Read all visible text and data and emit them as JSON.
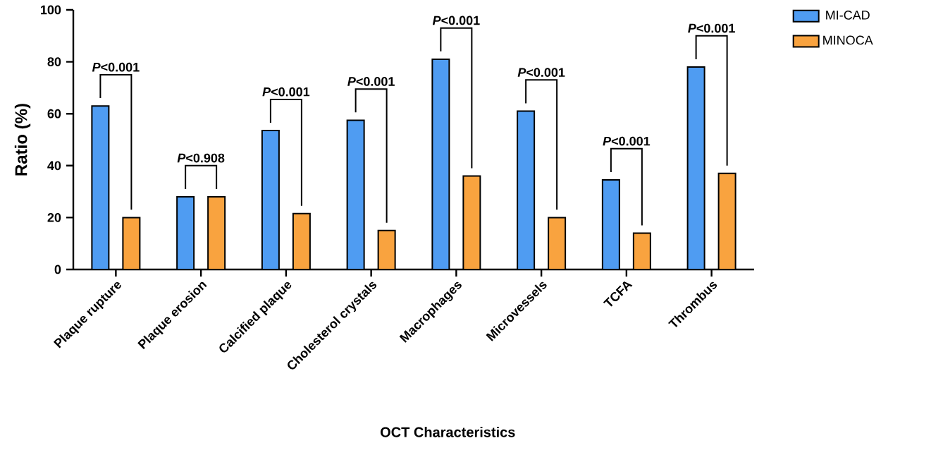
{
  "chart_data": {
    "type": "bar",
    "xlabel": "OCT Characteristics",
    "ylabel": "Ratio (%)",
    "categories": [
      "Plaque rupture",
      "Plaque erosion",
      "Calcified plaque",
      "Cholesterol crystals",
      "Macrophages",
      "Microvessels",
      "TCFA",
      "Thrombus"
    ],
    "series": [
      {
        "name": "MI-CAD",
        "color": "#4f9cf2",
        "values": [
          63,
          28,
          53.5,
          57.5,
          81,
          61,
          34.5,
          78
        ]
      },
      {
        "name": "MINOCA",
        "color": "#f9a33f",
        "values": [
          20,
          28,
          21.5,
          15,
          36,
          20,
          14,
          37
        ]
      }
    ],
    "ylim": [
      0,
      100
    ],
    "yticks": [
      0,
      20,
      40,
      60,
      80,
      100
    ],
    "grid": false,
    "legend": "top right",
    "annotations": [
      "*P*<0.001",
      "*P*<0.908",
      "*P*<0.001",
      "*P*<0.001",
      "*P*<0.001",
      "*P*<0.001",
      "*P*<0.001",
      "*P*<0.001"
    ]
  }
}
